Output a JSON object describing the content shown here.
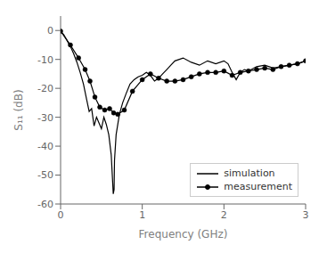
{
  "chart_data": {
    "type": "line",
    "xlabel": "Frequency (GHz)",
    "ylabel": "S₁₁ (dB)",
    "xlim": [
      0,
      3
    ],
    "ylim": [
      -60,
      5
    ],
    "xticks": [
      0,
      1,
      2,
      3
    ],
    "yticks": [
      0,
      -10,
      -20,
      -30,
      -40,
      -50,
      -60
    ],
    "grid": false,
    "legend": "lower right",
    "series": [
      {
        "name": "simulation",
        "color": "#000000",
        "marker": "none",
        "x": [
          0.0,
          0.04,
          0.08,
          0.12,
          0.16,
          0.2,
          0.24,
          0.28,
          0.32,
          0.35,
          0.38,
          0.41,
          0.44,
          0.47,
          0.5,
          0.53,
          0.56,
          0.59,
          0.62,
          0.645,
          0.655,
          0.66,
          0.68,
          0.72,
          0.76,
          0.8,
          0.85,
          0.9,
          0.95,
          1.0,
          1.05,
          1.1,
          1.15,
          1.2,
          1.25,
          1.3,
          1.35,
          1.4,
          1.5,
          1.6,
          1.7,
          1.8,
          1.9,
          2.0,
          2.05,
          2.1,
          2.15,
          2.2,
          2.25,
          2.3,
          2.4,
          2.5,
          2.6,
          2.7,
          2.8,
          2.9,
          3.0
        ],
        "values": [
          -0.2,
          -1.5,
          -3.5,
          -5.5,
          -8.0,
          -11.0,
          -14.5,
          -18.5,
          -24.0,
          -28.0,
          -27.0,
          -33.0,
          -30.0,
          -32.0,
          -34.0,
          -30.0,
          -32.5,
          -36.0,
          -43.0,
          -56.5,
          -55.0,
          -45.0,
          -36.0,
          -29.0,
          -25.0,
          -22.0,
          -18.5,
          -17.0,
          -16.0,
          -15.5,
          -14.5,
          -15.5,
          -17.5,
          -16.5,
          -15.0,
          -13.5,
          -12.0,
          -10.5,
          -9.5,
          -11.0,
          -12.0,
          -10.5,
          -11.5,
          -10.5,
          -11.5,
          -14.5,
          -17.0,
          -14.5,
          -13.5,
          -14.0,
          -12.5,
          -12.0,
          -13.0,
          -12.5,
          -12.0,
          -11.5,
          -10.5
        ]
      },
      {
        "name": "measurement",
        "color": "#000000",
        "marker": "circle",
        "x": [
          0.0,
          0.12,
          0.22,
          0.3,
          0.36,
          0.42,
          0.48,
          0.54,
          0.6,
          0.65,
          0.7,
          0.78,
          0.88,
          1.0,
          1.1,
          1.2,
          1.3,
          1.4,
          1.5,
          1.6,
          1.7,
          1.8,
          1.9,
          2.0,
          2.1,
          2.2,
          2.3,
          2.4,
          2.5,
          2.6,
          2.7,
          2.8,
          2.9,
          3.0
        ],
        "values": [
          -0.2,
          -5.0,
          -9.5,
          -13.5,
          -17.5,
          -23.0,
          -26.5,
          -27.5,
          -27.0,
          -28.5,
          -29.0,
          -27.5,
          -21.0,
          -17.0,
          -15.0,
          -16.5,
          -17.5,
          -17.5,
          -17.0,
          -16.0,
          -15.0,
          -14.5,
          -14.5,
          -14.0,
          -15.5,
          -14.5,
          -14.0,
          -13.5,
          -13.0,
          -13.5,
          -12.5,
          -12.0,
          -11.5,
          -10.5
        ]
      }
    ]
  }
}
